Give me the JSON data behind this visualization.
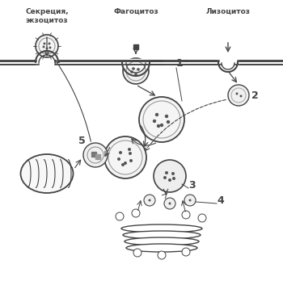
{
  "title_top_left": "Секреция,\nэкзоцитоз",
  "title_top_mid": "Фагоцитоз",
  "title_top_right": "Лизоцитоз",
  "label_1": "1",
  "label_2": "2",
  "label_3": "3",
  "label_4": "4",
  "label_5": "5",
  "bg_color": "#ffffff",
  "line_color": "#444444"
}
